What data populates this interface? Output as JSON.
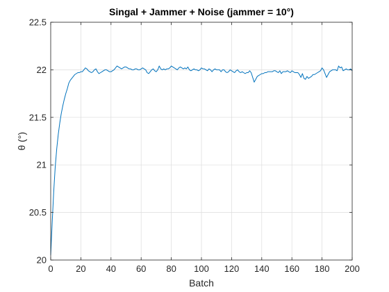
{
  "chart_data": {
    "type": "line",
    "title": "Singal + Jammer + Noise (jammer = 10°)",
    "xlabel": "Batch",
    "ylabel": "θ (°)",
    "xlim": [
      0,
      200
    ],
    "ylim": [
      20,
      22.5
    ],
    "xticks": [
      0,
      20,
      40,
      60,
      80,
      100,
      120,
      140,
      160,
      180,
      200
    ],
    "yticks": [
      20,
      20.5,
      21,
      21.5,
      22,
      22.5
    ],
    "xtick_labels": [
      "0",
      "20",
      "40",
      "60",
      "80",
      "100",
      "120",
      "140",
      "160",
      "180",
      "200"
    ],
    "ytick_labels": [
      "20",
      "20.5",
      "21",
      "21.5",
      "22",
      "22.5"
    ],
    "grid": true,
    "series": [
      {
        "color": "#0072BD",
        "x": [
          0,
          1,
          2,
          3,
          4,
          5,
          6,
          7,
          8,
          9,
          10,
          11,
          12,
          13,
          14,
          15,
          16,
          17,
          18,
          19,
          20,
          21,
          22,
          23,
          24,
          25,
          26,
          27,
          28,
          29,
          30,
          31,
          32,
          33,
          34,
          35,
          36,
          37,
          38,
          39,
          40,
          41,
          42,
          43,
          44,
          45,
          46,
          47,
          48,
          49,
          50,
          51,
          52,
          53,
          54,
          55,
          56,
          57,
          58,
          59,
          60,
          61,
          62,
          63,
          64,
          65,
          66,
          67,
          68,
          69,
          70,
          71,
          72,
          73,
          74,
          75,
          76,
          77,
          78,
          79,
          80,
          81,
          82,
          83,
          84,
          85,
          86,
          87,
          88,
          89,
          90,
          91,
          92,
          93,
          94,
          95,
          96,
          97,
          98,
          99,
          100,
          101,
          102,
          103,
          104,
          105,
          106,
          107,
          108,
          109,
          110,
          111,
          112,
          113,
          114,
          115,
          116,
          117,
          118,
          119,
          120,
          121,
          122,
          123,
          124,
          125,
          126,
          127,
          128,
          129,
          130,
          131,
          132,
          133,
          134,
          135,
          136,
          137,
          138,
          139,
          140,
          141,
          142,
          143,
          144,
          145,
          146,
          147,
          148,
          149,
          150,
          151,
          152,
          153,
          154,
          155,
          156,
          157,
          158,
          159,
          160,
          161,
          162,
          163,
          164,
          165,
          166,
          167,
          168,
          169,
          170,
          171,
          172,
          173,
          174,
          175,
          176,
          177,
          178,
          179,
          180,
          181,
          182,
          183,
          184,
          185,
          186,
          187,
          188,
          189,
          190,
          191,
          192,
          193,
          194,
          195,
          196,
          197,
          198,
          199,
          200
        ],
        "y": [
          20.05,
          20.4,
          20.72,
          20.98,
          21.17,
          21.32,
          21.44,
          21.54,
          21.62,
          21.69,
          21.75,
          21.8,
          21.86,
          21.89,
          21.91,
          21.93,
          21.95,
          21.96,
          21.97,
          21.97,
          21.98,
          21.98,
          22.0,
          22.02,
          22.01,
          21.99,
          21.98,
          21.97,
          21.98,
          22.0,
          22.01,
          21.98,
          21.96,
          21.97,
          21.98,
          21.99,
          22.0,
          22.0,
          21.99,
          21.98,
          21.98,
          21.99,
          22.0,
          22.02,
          22.04,
          22.03,
          22.02,
          22.01,
          22.02,
          22.03,
          22.03,
          22.02,
          22.01,
          22.01,
          22.0,
          22.0,
          22.01,
          22.01,
          22.0,
          22.0,
          22.01,
          22.02,
          22.01,
          22.0,
          21.97,
          21.96,
          21.98,
          22.0,
          22.01,
          21.99,
          21.98,
          22.0,
          22.04,
          22.01,
          22.0,
          22.01,
          22.0,
          22.01,
          22.01,
          22.02,
          22.04,
          22.03,
          22.02,
          22.01,
          22.0,
          22.02,
          22.03,
          22.02,
          22.01,
          22.02,
          22.01,
          22.03,
          22.0,
          21.99,
          22.0,
          22.01,
          22.0,
          22.0,
          21.99,
          22.0,
          22.02,
          22.01,
          22.01,
          22.0,
          21.99,
          22.01,
          22.0,
          21.98,
          22.0,
          22.01,
          22.0,
          22.0,
          22.0,
          21.98,
          22.0,
          22.0,
          21.98,
          21.97,
          21.98,
          22.0,
          21.99,
          21.98,
          21.97,
          21.99,
          22.0,
          21.98,
          21.97,
          21.98,
          21.97,
          21.96,
          21.97,
          21.97,
          21.99,
          21.97,
          21.92,
          21.87,
          21.9,
          21.93,
          21.94,
          21.95,
          21.96,
          21.96,
          21.97,
          21.97,
          21.98,
          21.98,
          21.98,
          21.98,
          21.99,
          21.99,
          21.98,
          21.97,
          21.99,
          21.96,
          21.98,
          21.98,
          21.98,
          21.99,
          21.98,
          21.97,
          21.99,
          21.98,
          21.97,
          21.97,
          21.97,
          21.95,
          21.92,
          21.96,
          21.91,
          21.9,
          21.93,
          21.91,
          21.92,
          21.93,
          21.95,
          21.95,
          21.96,
          21.97,
          21.98,
          21.99,
          22.02,
          22.0,
          21.96,
          21.92,
          21.95,
          21.98,
          21.99,
          22.0,
          22.0,
          22.0,
          21.99,
          22.04,
          22.02,
          22.03,
          21.99,
          22.0,
          22.01,
          22.0,
          22.0,
          22.01,
          21.99
        ]
      }
    ]
  }
}
